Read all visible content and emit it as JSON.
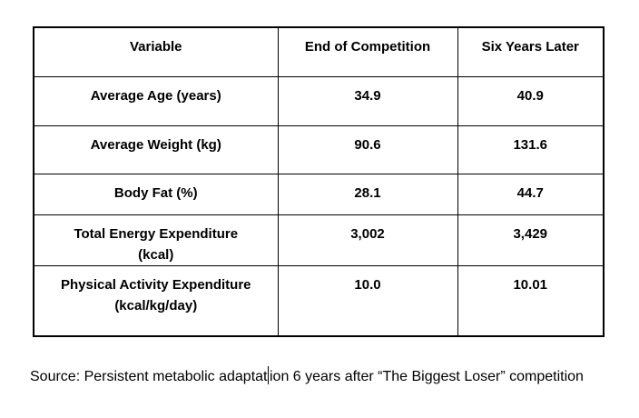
{
  "table": {
    "headers": {
      "variable": "Variable",
      "end_of_competition": "End of Competition",
      "six_years_later": "Six Years Later"
    },
    "rows": [
      {
        "variable_line1": "Average Age (years)",
        "end_of_competition": "34.9",
        "six_years_later": "40.9"
      },
      {
        "variable_line1": "Average Weight (kg)",
        "end_of_competition": "90.6",
        "six_years_later": "131.6"
      },
      {
        "variable_line1": "Body Fat (%)",
        "end_of_competition": "28.1",
        "six_years_later": "44.7"
      },
      {
        "variable_line1": "Total Energy Expenditure",
        "variable_line2": "(kcal)",
        "end_of_competition": "3,002",
        "six_years_later": "3,429"
      },
      {
        "variable_line1": "Physical Activity Expenditure",
        "variable_line2": "(kcal/kg/day)",
        "end_of_competition": "10.0",
        "six_years_later": "10.01"
      }
    ]
  },
  "source": {
    "before_caret": "Source: Persistent metabolic adaptat",
    "after_caret": "ion 6 years after “The Biggest Loser” competition"
  },
  "colors": {
    "text": "#000000",
    "border": "#000000",
    "background": "#ffffff"
  }
}
